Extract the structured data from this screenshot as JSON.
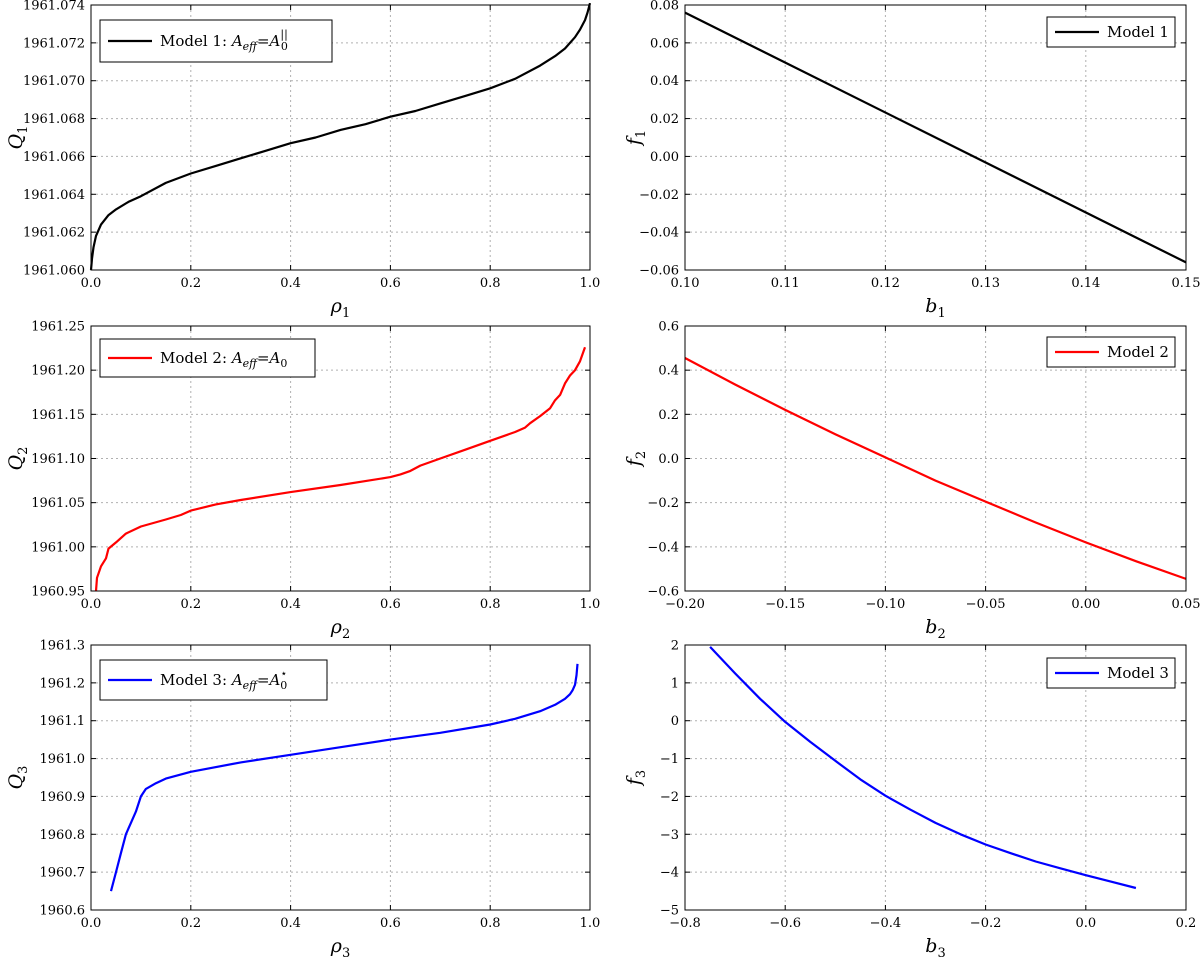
{
  "chart_data": [
    {
      "type": "line",
      "id": "p11",
      "xlabel": "ρ1",
      "ylabel": "Q1",
      "xlim": [
        0.0,
        1.0
      ],
      "ylim": [
        1961.06,
        1961.074
      ],
      "xticks": [
        "0.0",
        "0.2",
        "0.4",
        "0.6",
        "0.8",
        "1.0"
      ],
      "yticks": [
        "1961.060",
        "1961.062",
        "1961.064",
        "1961.066",
        "1961.068",
        "1961.070",
        "1961.072",
        "1961.074"
      ],
      "grid": true,
      "legend_position": "upper-left",
      "series": [
        {
          "name": "Model 1: A_eff = A_0^||",
          "color": "#000000",
          "x": [
            0.0,
            0.002,
            0.005,
            0.01,
            0.02,
            0.035,
            0.05,
            0.075,
            0.1,
            0.15,
            0.2,
            0.25,
            0.3,
            0.35,
            0.4,
            0.45,
            0.5,
            0.55,
            0.6,
            0.65,
            0.7,
            0.75,
            0.8,
            0.85,
            0.9,
            0.93,
            0.95,
            0.97,
            0.98,
            0.99,
            0.995,
            1.0
          ],
          "y": [
            1961.06,
            1961.0606,
            1961.0612,
            1961.0618,
            1961.0624,
            1961.0629,
            1961.0632,
            1961.0636,
            1961.0639,
            1961.0646,
            1961.0651,
            1961.0655,
            1961.0659,
            1961.0663,
            1961.0667,
            1961.067,
            1961.0674,
            1961.0677,
            1961.0681,
            1961.0684,
            1961.0688,
            1961.0692,
            1961.0696,
            1961.0701,
            1961.0708,
            1961.0713,
            1961.0717,
            1961.0723,
            1961.0727,
            1961.0732,
            1961.0736,
            1961.0741
          ]
        }
      ]
    },
    {
      "type": "line",
      "id": "p12",
      "xlabel": "b1",
      "ylabel": "f1",
      "xlim": [
        0.1,
        0.15
      ],
      "ylim": [
        -0.06,
        0.08
      ],
      "xticks": [
        "0.10",
        "0.11",
        "0.12",
        "0.13",
        "0.14",
        "0.15"
      ],
      "yticks": [
        "−0.06",
        "−0.04",
        "−0.02",
        "0.00",
        "0.02",
        "0.04",
        "0.06",
        "0.08"
      ],
      "grid": true,
      "legend_position": "upper-right",
      "series": [
        {
          "name": "Model 1",
          "color": "#000000",
          "x": [
            0.1,
            0.15
          ],
          "y": [
            0.076,
            -0.056
          ]
        }
      ]
    },
    {
      "type": "line",
      "id": "p21",
      "xlabel": "ρ2",
      "ylabel": "Q2",
      "xlim": [
        0.0,
        1.0
      ],
      "ylim": [
        1960.95,
        1961.25
      ],
      "xticks": [
        "0.0",
        "0.2",
        "0.4",
        "0.6",
        "0.8",
        "1.0"
      ],
      "yticks": [
        "1960.95",
        "1961.00",
        "1961.05",
        "1961.10",
        "1961.15",
        "1961.20",
        "1961.25"
      ],
      "grid": true,
      "legend_position": "upper-left",
      "series": [
        {
          "name": "Model 2: A_eff = A_0",
          "color": "#ff0000",
          "x": [
            0.01,
            0.012,
            0.02,
            0.03,
            0.035,
            0.05,
            0.07,
            0.1,
            0.15,
            0.18,
            0.2,
            0.25,
            0.3,
            0.4,
            0.5,
            0.6,
            0.62,
            0.64,
            0.66,
            0.7,
            0.75,
            0.8,
            0.85,
            0.87,
            0.88,
            0.9,
            0.92,
            0.93,
            0.94,
            0.95,
            0.96,
            0.97,
            0.98,
            0.99
          ],
          "y": [
            1960.95,
            1960.965,
            1960.978,
            1960.987,
            1960.998,
            1961.005,
            1961.015,
            1961.023,
            1961.031,
            1961.036,
            1961.041,
            1961.048,
            1961.053,
            1961.062,
            1961.07,
            1961.079,
            1961.082,
            1961.086,
            1961.092,
            1961.1,
            1961.11,
            1961.12,
            1961.13,
            1961.135,
            1961.14,
            1961.148,
            1961.157,
            1961.166,
            1961.172,
            1961.185,
            1961.194,
            1961.2,
            1961.21,
            1961.226
          ]
        }
      ]
    },
    {
      "type": "line",
      "id": "p22",
      "xlabel": "b2",
      "ylabel": "f2",
      "xlim": [
        -0.2,
        0.05
      ],
      "ylim": [
        -0.6,
        0.6
      ],
      "xticks": [
        "−0.20",
        "−0.15",
        "−0.10",
        "−0.05",
        "0.00",
        "0.05"
      ],
      "yticks": [
        "−0.6",
        "−0.4",
        "−0.2",
        "0.0",
        "0.2",
        "0.4",
        "0.6"
      ],
      "grid": true,
      "legend_position": "upper-right",
      "series": [
        {
          "name": "Model 2",
          "color": "#ff0000",
          "x": [
            -0.2,
            -0.175,
            -0.15,
            -0.125,
            -0.1,
            -0.075,
            -0.05,
            -0.025,
            0.0,
            0.025,
            0.05
          ],
          "y": [
            0.455,
            0.335,
            0.22,
            0.11,
            0.005,
            -0.1,
            -0.195,
            -0.29,
            -0.38,
            -0.465,
            -0.545
          ]
        }
      ]
    },
    {
      "type": "line",
      "id": "p31",
      "xlabel": "ρ3",
      "ylabel": "Q3",
      "xlim": [
        0.0,
        1.0
      ],
      "ylim": [
        1960.6,
        1961.3
      ],
      "xticks": [
        "0.0",
        "0.2",
        "0.4",
        "0.6",
        "0.8",
        "1.0"
      ],
      "yticks": [
        "1960.6",
        "1960.7",
        "1960.8",
        "1960.9",
        "1961.0",
        "1961.1",
        "1961.2",
        "1961.3"
      ],
      "grid": true,
      "legend_position": "upper-left",
      "series": [
        {
          "name": "Model 3: A_eff = A_0^⋆",
          "color": "#0000ff",
          "x": [
            0.04,
            0.05,
            0.06,
            0.07,
            0.08,
            0.09,
            0.095,
            0.1,
            0.11,
            0.13,
            0.15,
            0.2,
            0.3,
            0.4,
            0.5,
            0.6,
            0.7,
            0.8,
            0.85,
            0.9,
            0.93,
            0.95,
            0.96,
            0.965,
            0.97,
            0.973,
            0.975
          ],
          "y": [
            1960.65,
            1960.7,
            1960.75,
            1960.8,
            1960.83,
            1960.86,
            1960.88,
            1960.9,
            1960.92,
            1960.935,
            1960.947,
            1960.965,
            1960.99,
            1961.01,
            1961.03,
            1961.05,
            1961.068,
            1961.09,
            1961.105,
            1961.125,
            1961.142,
            1961.158,
            1961.17,
            1961.18,
            1961.195,
            1961.22,
            1961.25
          ]
        }
      ]
    },
    {
      "type": "line",
      "id": "p32",
      "xlabel": "b3",
      "ylabel": "f3",
      "xlim": [
        -0.8,
        0.2
      ],
      "ylim": [
        -5,
        2
      ],
      "xticks": [
        "−0.8",
        "−0.6",
        "−0.4",
        "−0.2",
        "0.0",
        "0.2"
      ],
      "yticks": [
        "−5",
        "−4",
        "−3",
        "−2",
        "−1",
        "0",
        "1",
        "2"
      ],
      "grid": true,
      "legend_position": "upper-right",
      "series": [
        {
          "name": "Model 3",
          "color": "#0000ff",
          "x": [
            -0.75,
            -0.7,
            -0.65,
            -0.6,
            -0.55,
            -0.5,
            -0.45,
            -0.4,
            -0.35,
            -0.3,
            -0.25,
            -0.2,
            -0.15,
            -0.1,
            -0.05,
            0.0,
            0.05,
            0.1
          ],
          "y": [
            1.95,
            1.25,
            0.58,
            -0.03,
            -0.56,
            -1.06,
            -1.55,
            -1.98,
            -2.35,
            -2.7,
            -3.0,
            -3.27,
            -3.5,
            -3.72,
            -3.9,
            -4.08,
            -4.25,
            -4.42
          ]
        }
      ]
    }
  ]
}
